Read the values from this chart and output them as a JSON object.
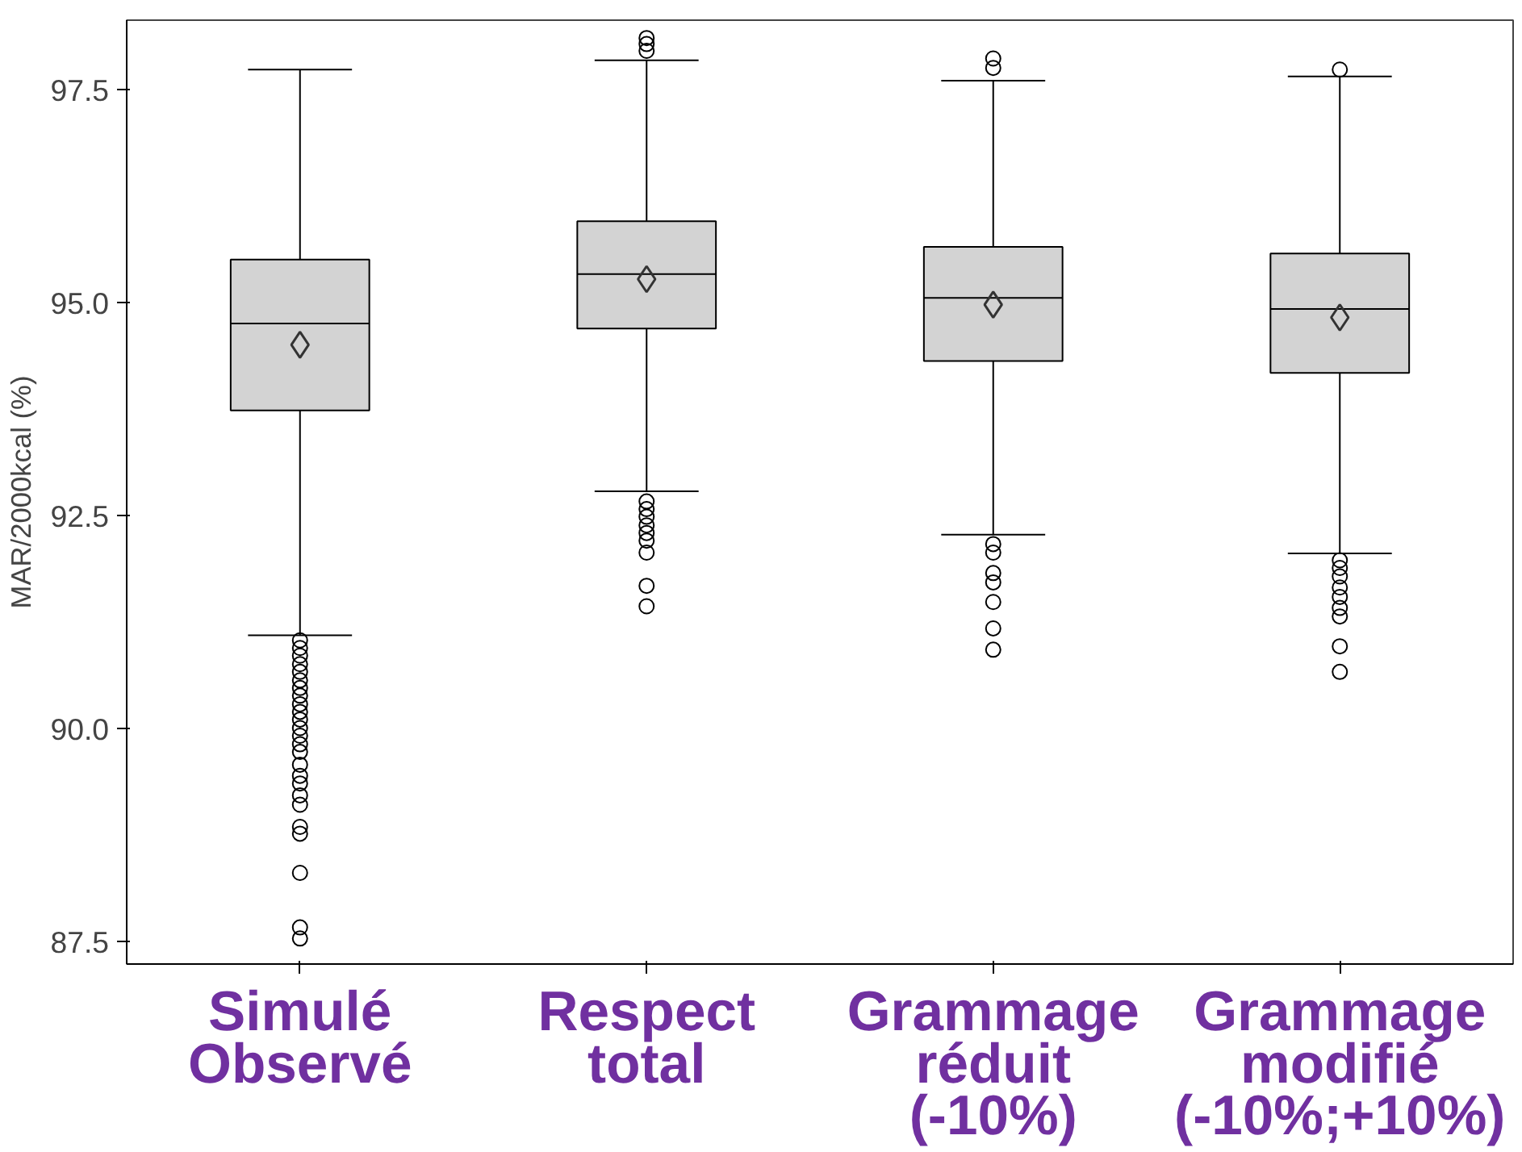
{
  "chart_data": {
    "type": "box",
    "ylabel": "MAR/2000kcal (%)",
    "categories": [
      "Simulé\nObservé",
      "Respect\ntotal",
      "Grammage\nréduit\n(-10%)",
      "Grammage\nmodifié\n(-10%;+10%)"
    ],
    "color": "#d3d3d3",
    "ylim": [
      87.24,
      98.32
    ],
    "yticks": [
      {
        "value": 87.5,
        "label": "87.5"
      },
      {
        "value": 90,
        "label": "90.0"
      },
      {
        "value": 92.5,
        "label": "92.5"
      },
      {
        "value": 95,
        "label": "95.0"
      },
      {
        "value": 97.5,
        "label": "97.5"
      }
    ],
    "grid": false,
    "boxes": [
      {
        "low": 91.1,
        "q1": 93.74,
        "median": 94.76,
        "q3": 95.51,
        "high": 97.74,
        "mean": 94.51,
        "outliers": [
          91.04,
          90.95,
          90.86,
          90.76,
          90.67,
          90.57,
          90.48,
          90.39,
          90.29,
          90.2,
          90.11,
          90.01,
          89.92,
          89.82,
          89.73,
          89.58,
          89.45,
          89.36,
          89.22,
          89.11,
          88.85,
          88.77,
          88.31,
          87.67,
          87.54
        ]
      },
      {
        "low": 92.79,
        "q1": 94.7,
        "median": 95.34,
        "q3": 95.96,
        "high": 97.85,
        "mean": 95.28,
        "outliers": [
          98.11,
          98.04,
          97.96,
          92.67,
          92.58,
          92.49,
          92.39,
          92.3,
          92.21,
          92.07,
          91.68,
          91.44
        ]
      },
      {
        "low": 92.28,
        "q1": 94.32,
        "median": 95.06,
        "q3": 95.66,
        "high": 97.61,
        "mean": 94.98,
        "outliers": [
          97.87,
          97.76,
          92.17,
          92.07,
          91.83,
          91.72,
          91.49,
          91.18,
          90.93
        ]
      },
      {
        "low": 92.06,
        "q1": 94.18,
        "median": 94.93,
        "q3": 95.58,
        "high": 97.66,
        "mean": 94.83,
        "outliers": [
          97.74,
          91.98,
          91.89,
          91.79,
          91.66,
          91.55,
          91.42,
          91.32,
          90.97,
          90.67
        ]
      }
    ]
  }
}
